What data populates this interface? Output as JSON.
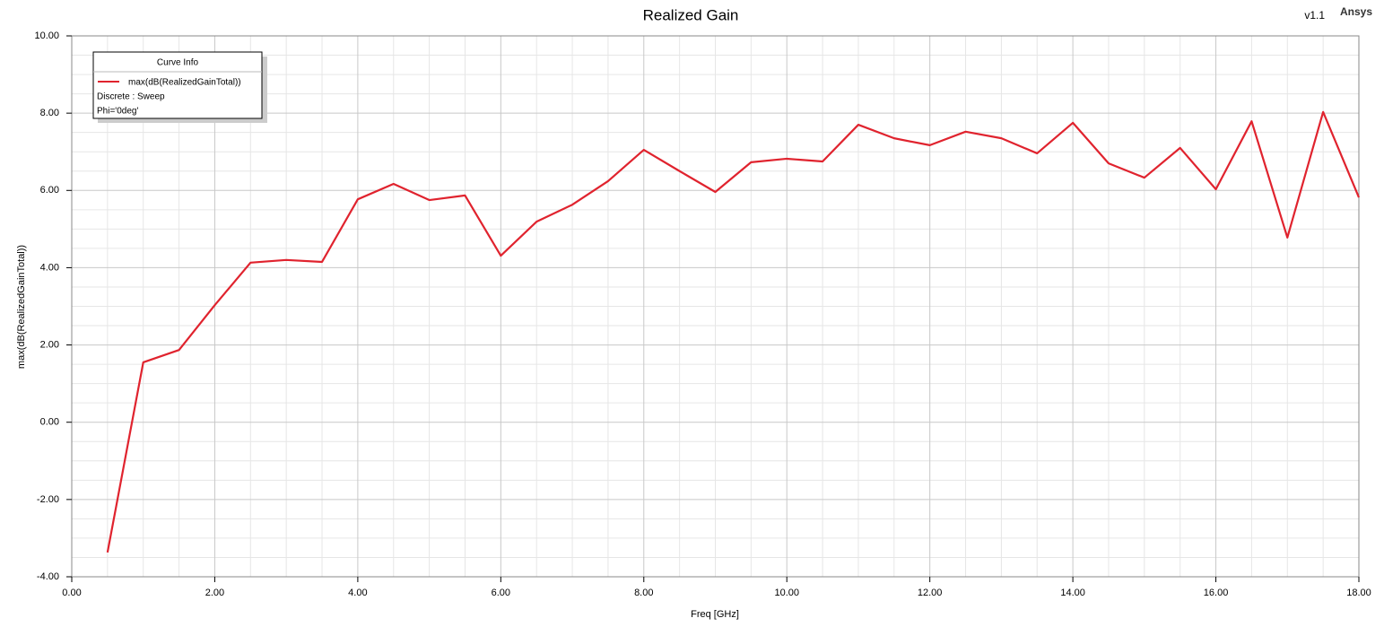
{
  "chart_data": {
    "type": "line",
    "title": "Realized Gain",
    "version": "v1.1",
    "brand": "Ansys",
    "xlabel": "Freq [GHz]",
    "ylabel": "max(dB(RealizedGainTotal))",
    "legend_title": "Curve Info",
    "legend_notes": [
      "Discrete : Sweep",
      "Phi='0deg'"
    ],
    "legend": "upper left",
    "grid": true,
    "x": [
      0.5,
      1.0,
      1.5,
      2.0,
      2.5,
      3.0,
      3.5,
      4.0,
      4.5,
      5.0,
      5.5,
      6.0,
      6.5,
      7.0,
      7.5,
      8.0,
      8.5,
      9.0,
      9.5,
      10.0,
      10.5,
      11.0,
      11.5,
      12.0,
      12.5,
      13.0,
      13.5,
      14.0,
      14.5,
      15.0,
      15.5,
      16.0,
      16.5,
      17.0,
      17.5,
      18.0
    ],
    "series": [
      {
        "name": "max(dB(RealizedGainTotal))",
        "color": "#e0232e",
        "values": [
          -3.37,
          1.55,
          1.87,
          3.03,
          4.13,
          4.2,
          4.15,
          5.77,
          6.17,
          5.75,
          5.87,
          4.31,
          5.19,
          5.63,
          6.24,
          7.05,
          6.5,
          5.96,
          6.73,
          6.82,
          6.75,
          7.7,
          7.35,
          7.17,
          7.52,
          7.35,
          6.96,
          7.75,
          6.7,
          6.33,
          7.1,
          6.03,
          7.79,
          4.78,
          8.03,
          5.82
        ]
      }
    ],
    "xlim": [
      0,
      18
    ],
    "xticks": [
      {
        "value": 0,
        "label": "0.00"
      },
      {
        "value": 2,
        "label": "2.00"
      },
      {
        "value": 4,
        "label": "4.00"
      },
      {
        "value": 6,
        "label": "6.00"
      },
      {
        "value": 8,
        "label": "8.00"
      },
      {
        "value": 10,
        "label": "10.00"
      },
      {
        "value": 12,
        "label": "12.00"
      },
      {
        "value": 14,
        "label": "14.00"
      },
      {
        "value": 16,
        "label": "16.00"
      },
      {
        "value": 18,
        "label": "18.00"
      }
    ],
    "ylim": [
      -4,
      10
    ],
    "yticks": [
      {
        "value": -4,
        "label": "-4.00"
      },
      {
        "value": -2,
        "label": "-2.00"
      },
      {
        "value": 0,
        "label": "0.00"
      },
      {
        "value": 2,
        "label": "2.00"
      },
      {
        "value": 4,
        "label": "4.00"
      },
      {
        "value": 6,
        "label": "6.00"
      },
      {
        "value": 8,
        "label": "8.00"
      },
      {
        "value": 10,
        "label": "10.00"
      }
    ]
  }
}
